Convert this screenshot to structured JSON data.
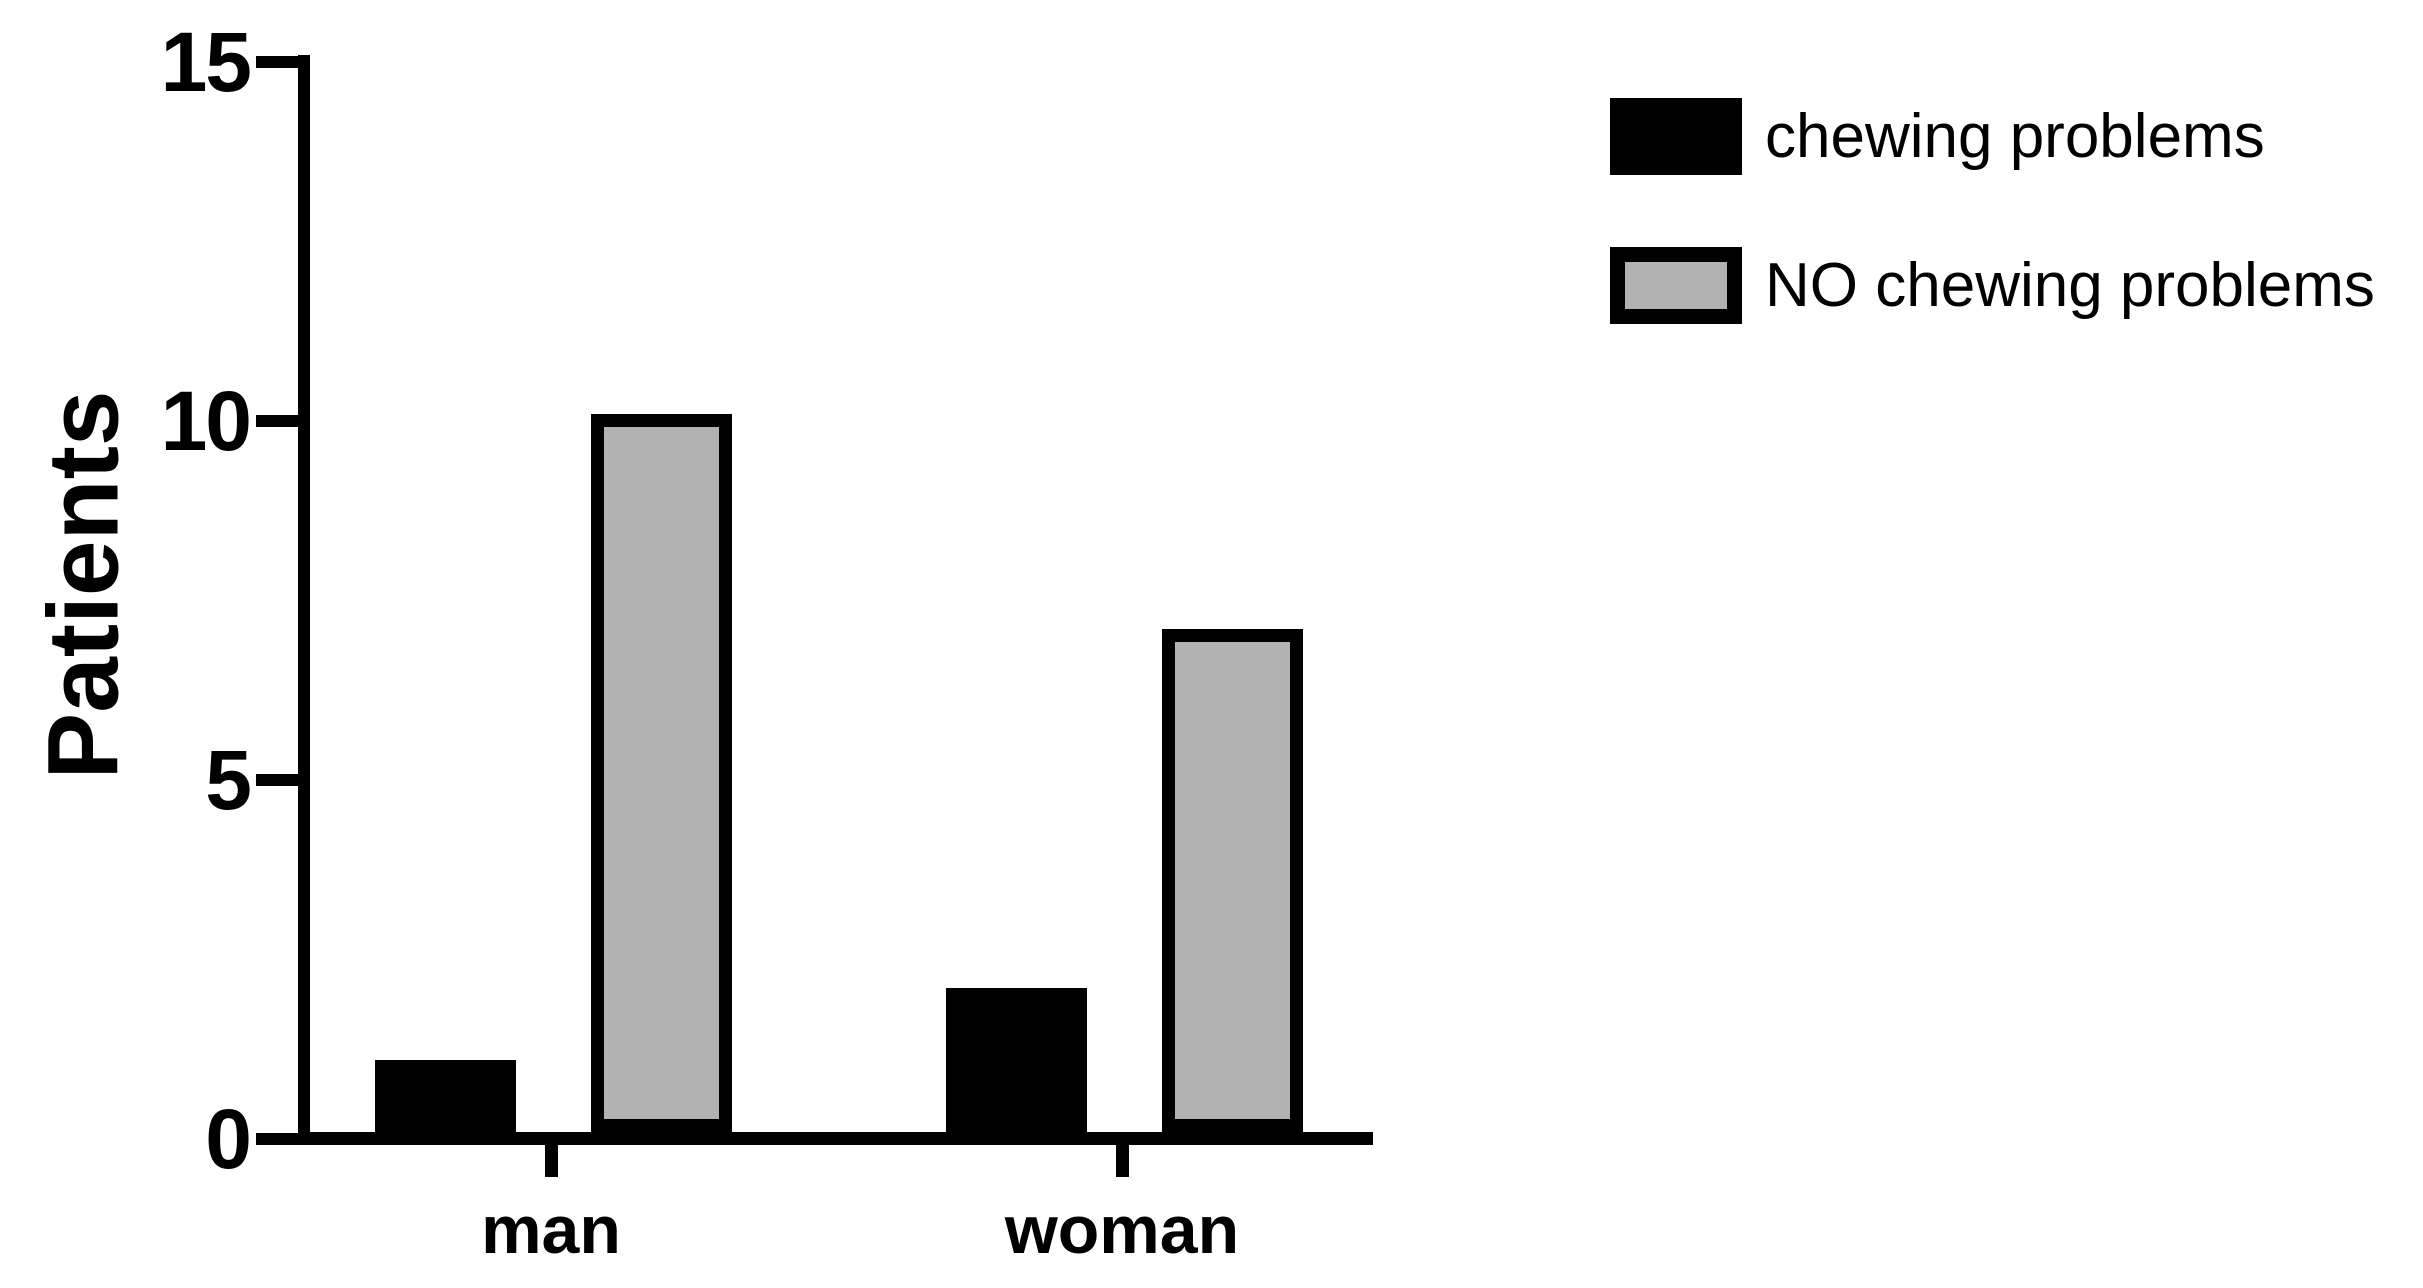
{
  "chart_data": {
    "type": "bar",
    "title": "",
    "categories": [
      "man",
      "woman"
    ],
    "series": [
      {
        "name": "chewing problems",
        "values": [
          1,
          2
        ],
        "fill": "#000000",
        "border": "#000000"
      },
      {
        "name": "NO chewing problems",
        "values": [
          10,
          7
        ],
        "fill": "#b2b2b2",
        "border": "#000000"
      }
    ],
    "xlabel": "",
    "ylabel": "Patients",
    "yticks": [
      0,
      5,
      10,
      15
    ],
    "ylim": [
      0,
      15
    ],
    "grid": false,
    "bar_style": "grouped",
    "legend_position": "top-right",
    "axis_color": "#000000",
    "background_color": "#ffffff"
  }
}
